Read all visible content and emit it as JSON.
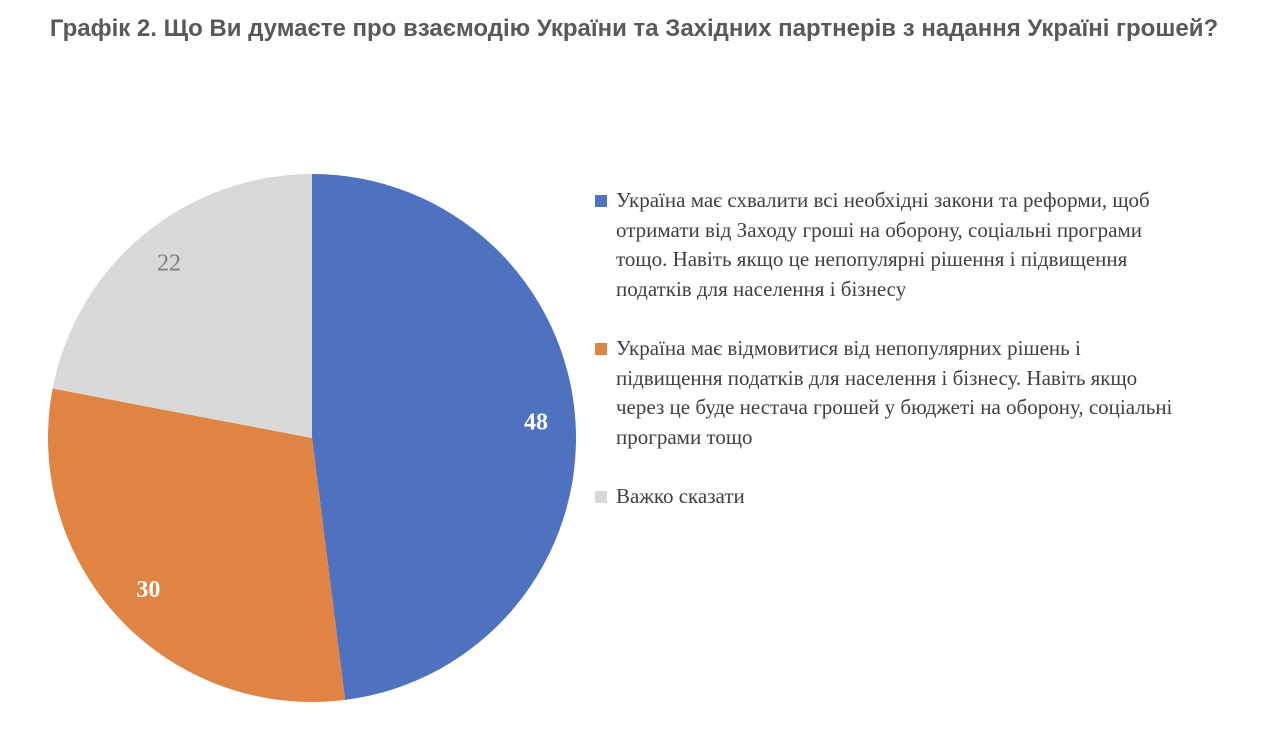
{
  "title": "Графік 2. Що Ви думаєте про взаємодію України та Західних партнерів з надання Україні грошей?",
  "chart_data": {
    "type": "pie",
    "slices": [
      {
        "label": "Україна має схвалити всі необхідні закони та реформи, щоб отримати від Заходу гроші на оборону, соціальні програми тощо. Навіть якщо це непопулярні рішення і підвищення податків для населення і бізнесу",
        "value": 48,
        "color": "#4F72C0",
        "label_color": "#ffffff"
      },
      {
        "label": "Україна має відмовитися від непопулярних рішень і підвищення податків для населення і бізнесу. Навіть якщо через це буде нестача грошей у бюджеті на оборону, соціальні програми тощо",
        "value": 30,
        "color": "#E08444",
        "label_color": "#ffffff"
      },
      {
        "label": "Важко сказати",
        "value": 22,
        "color": "#D9D9D9",
        "label_color": "#7f7f7f"
      }
    ],
    "legend_position": "right"
  }
}
